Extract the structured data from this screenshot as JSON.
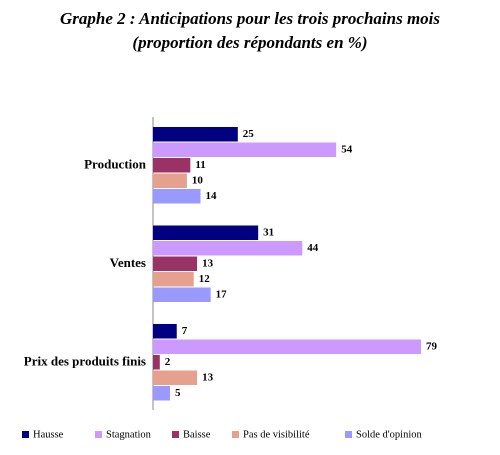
{
  "chart_data": {
    "type": "hbar",
    "title": "Graphe 2 : Anticipations pour les trois prochains mois",
    "subtitle": "(proportion des répondants en %)",
    "categories": [
      "Production",
      "Ventes",
      "Prix des produits finis"
    ],
    "series": [
      {
        "name": "Hausse",
        "color": "#000080",
        "values": [
          25,
          31,
          7
        ]
      },
      {
        "name": "Stagnation",
        "color": "#cc99ff",
        "values": [
          54,
          44,
          79
        ]
      },
      {
        "name": "Baisse",
        "color": "#993366",
        "values": [
          11,
          13,
          2
        ]
      },
      {
        "name": "Pas de visibilité",
        "color": "#e6a08e",
        "values": [
          10,
          12,
          13
        ]
      },
      {
        "name": "Solde d'opinion",
        "color": "#9999ff",
        "values": [
          14,
          17,
          5
        ]
      }
    ]
  }
}
